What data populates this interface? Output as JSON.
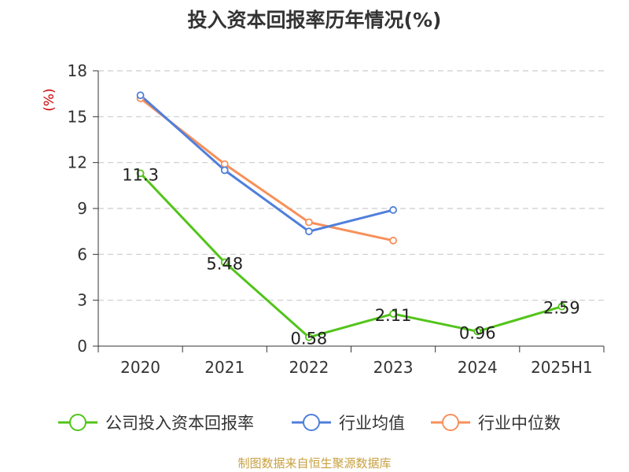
{
  "chart_data": {
    "type": "line",
    "title": "投入资本回报率历年情况(%)",
    "ylabel": "(%)",
    "ylim": [
      0,
      18
    ],
    "yticks": [
      0,
      3,
      6,
      9,
      12,
      15,
      18
    ],
    "grid": true,
    "legend_position": "bottom",
    "categories": [
      "2020",
      "2021",
      "2022",
      "2023",
      "2024",
      "2025H1"
    ],
    "series": [
      {
        "name": "公司投入资本回报率",
        "color": "#52c41a",
        "values": [
          11.3,
          5.48,
          0.58,
          2.11,
          0.96,
          2.59
        ],
        "labels": [
          "11.3",
          "5.48",
          "0.58",
          "2.11",
          "0.96",
          "2.59"
        ]
      },
      {
        "name": "行业均值",
        "color": "#4f7fdb",
        "values": [
          16.4,
          11.5,
          7.5,
          8.9,
          null,
          null
        ]
      },
      {
        "name": "行业中位数",
        "color": "#f7905a",
        "values": [
          16.2,
          11.9,
          8.1,
          6.9,
          null,
          null
        ]
      }
    ]
  },
  "source": "制图数据来自恒生聚源数据库"
}
